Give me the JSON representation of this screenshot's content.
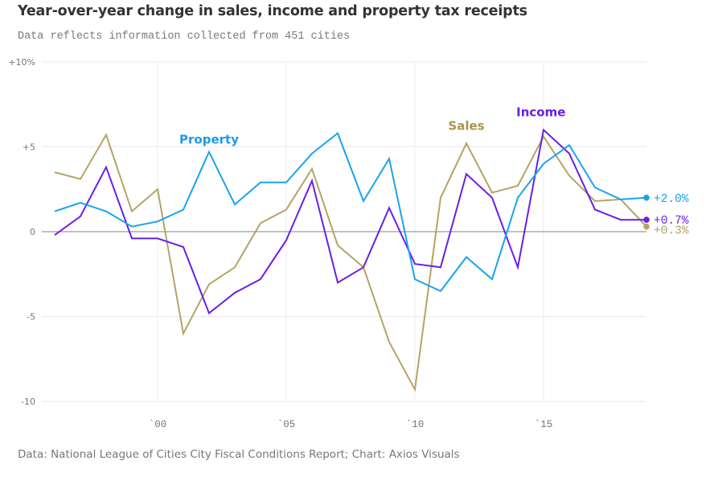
{
  "title": "Year-over-year change in sales, income and property tax receipts",
  "subtitle": "Data reflects information collected from 451 cities",
  "source": "Data: National League of Cities City Fiscal Conditions Report; Chart: Axios Visuals",
  "chart_data": {
    "type": "line",
    "title": "Year-over-year change in sales, income and property tax receipts",
    "subtitle": "Data reflects information collected from 451 cities",
    "xlabel": "",
    "ylabel": "",
    "x": [
      1996,
      1997,
      1998,
      1999,
      2000,
      2001,
      2002,
      2003,
      2004,
      2005,
      2006,
      2007,
      2008,
      2009,
      2010,
      2011,
      2012,
      2013,
      2014,
      2015,
      2016,
      2017,
      2018,
      2019
    ],
    "xlim": [
      1996,
      2019
    ],
    "ylim": [
      -10,
      10
    ],
    "grid": true,
    "y_ticks": [
      {
        "value": 10,
        "label": "+10%"
      },
      {
        "value": 5,
        "label": "+5"
      },
      {
        "value": 0,
        "label": "0"
      },
      {
        "value": -5,
        "label": "-5"
      },
      {
        "value": -10,
        "label": "-10"
      }
    ],
    "x_ticks": [
      {
        "value": 2000,
        "label": "`00"
      },
      {
        "value": 2005,
        "label": "`05"
      },
      {
        "value": 2010,
        "label": "`10"
      },
      {
        "value": 2015,
        "label": "`15"
      }
    ],
    "series": [
      {
        "name": "Sales",
        "color": "#b5a463",
        "label_color": "#a8964f",
        "label_at": {
          "x": 2012,
          "y": 6.0
        },
        "end_label": "+0.3%",
        "values": [
          3.5,
          3.1,
          5.7,
          1.2,
          2.5,
          -6.0,
          -3.1,
          -2.1,
          0.5,
          1.3,
          3.7,
          -0.8,
          -2.1,
          -6.5,
          -9.3,
          2.0,
          5.2,
          2.3,
          2.7,
          5.6,
          3.3,
          1.8,
          1.9,
          0.3
        ]
      },
      {
        "name": "Income",
        "color": "#6a1ee8",
        "label_color": "#6a1ee8",
        "label_at": {
          "x": 2014.9,
          "y": 6.8
        },
        "end_label": "+0.7%",
        "values": [
          -0.2,
          0.9,
          3.8,
          -0.4,
          -0.4,
          -0.9,
          -4.8,
          -3.6,
          -2.8,
          -0.5,
          3.0,
          -3.0,
          -2.1,
          1.4,
          -1.9,
          -2.1,
          3.4,
          2.0,
          -2.1,
          6.0,
          4.6,
          1.3,
          0.7,
          0.7
        ]
      },
      {
        "name": "Property",
        "color": "#1aa3ec",
        "label_color": "#1a9be6",
        "label_at": {
          "x": 2002,
          "y": 5.2
        },
        "end_label": "+2.0%",
        "values": [
          1.2,
          1.7,
          1.2,
          0.3,
          0.6,
          1.3,
          4.7,
          1.6,
          2.9,
          2.9,
          4.6,
          5.8,
          1.8,
          4.3,
          -2.8,
          -3.5,
          -1.5,
          -2.8,
          2.0,
          4.0,
          5.1,
          2.6,
          1.9,
          2.0
        ]
      }
    ]
  }
}
